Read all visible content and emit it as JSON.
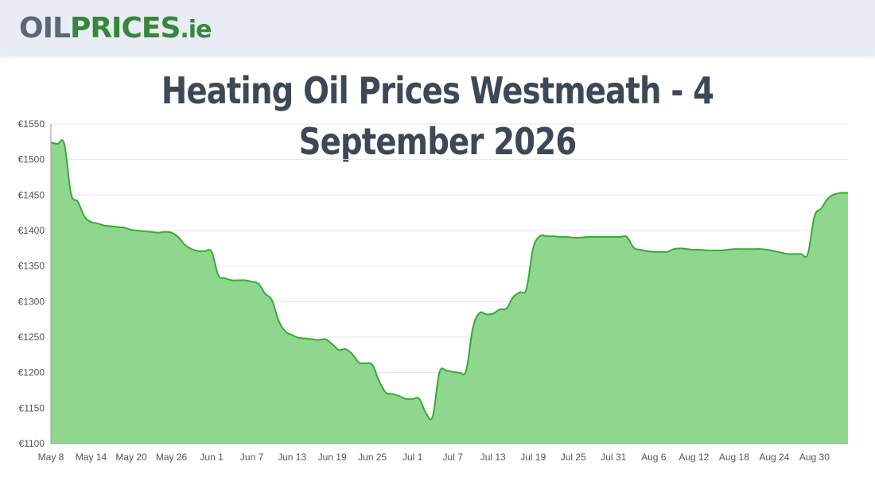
{
  "header": {
    "logo_part1": "OIL",
    "logo_part2": "PRICES",
    "logo_part3": ".ie"
  },
  "page": {
    "title": "Heating Oil Prices Westmeath - 4 September 2026"
  },
  "colors": {
    "header_bg": "#e9ecf4",
    "logo_gray": "#5d6677",
    "logo_green": "#36873a",
    "title": "#3e4756",
    "line": "#3aa935",
    "fill": "#8fd68f",
    "grid": "#e6e6e6"
  },
  "chart_data": {
    "type": "area",
    "title": "",
    "xlabel": "",
    "ylabel": "",
    "ylim": [
      1100,
      1550
    ],
    "y_ticks": [
      "€1100",
      "€1150",
      "€1200",
      "€1250",
      "€1300",
      "€1350",
      "€1400",
      "€1450",
      "€1500",
      "€1550"
    ],
    "y_tick_values": [
      1100,
      1150,
      1200,
      1250,
      1300,
      1350,
      1400,
      1450,
      1500,
      1550
    ],
    "x_tick_labels": [
      "May 8",
      "May 14",
      "May 20",
      "May 26",
      "Jun 1",
      "Jun 7",
      "Jun 13",
      "Jun 19",
      "Jun 25",
      "Jul 1",
      "Jul 7",
      "Jul 13",
      "Jul 19",
      "Jul 25",
      "Jul 31",
      "Aug 6",
      "Aug 12",
      "Aug 18",
      "Aug 24",
      "Aug 30"
    ],
    "grid": true,
    "legend": "none",
    "series": [
      {
        "x": [
          "May 8",
          "May 9",
          "May 10",
          "May 11",
          "May 12",
          "May 13",
          "May 14",
          "May 15",
          "May 16",
          "May 17",
          "May 18",
          "May 19",
          "May 20",
          "May 21",
          "May 22",
          "May 23",
          "May 24",
          "May 25",
          "May 26",
          "May 27",
          "May 28",
          "May 29",
          "May 30",
          "May 31",
          "Jun 1",
          "Jun 2",
          "Jun 3",
          "Jun 4",
          "Jun 5",
          "Jun 6",
          "Jun 7",
          "Jun 8",
          "Jun 9",
          "Jun 10",
          "Jun 11",
          "Jun 12",
          "Jun 13",
          "Jun 14",
          "Jun 15",
          "Jun 16",
          "Jun 17",
          "Jun 18",
          "Jun 19",
          "Jun 20",
          "Jun 21",
          "Jun 22",
          "Jun 23",
          "Jun 24",
          "Jun 25",
          "Jun 26",
          "Jun 27",
          "Jun 28",
          "Jun 29",
          "Jun 30",
          "Jul 1",
          "Jul 2",
          "Jul 3",
          "Jul 4",
          "Jul 5",
          "Jul 6",
          "Jul 7",
          "Jul 8",
          "Jul 9",
          "Jul 10",
          "Jul 11",
          "Jul 12",
          "Jul 13",
          "Jul 14",
          "Jul 15",
          "Jul 16",
          "Jul 17",
          "Jul 18",
          "Jul 19",
          "Jul 20",
          "Jul 21",
          "Jul 22",
          "Jul 23",
          "Jul 24",
          "Jul 25",
          "Jul 26",
          "Jul 27",
          "Jul 28",
          "Jul 29",
          "Jul 30",
          "Jul 31",
          "Aug 1",
          "Aug 2",
          "Aug 3",
          "Aug 4",
          "Aug 5",
          "Aug 6",
          "Aug 7",
          "Aug 8",
          "Aug 9",
          "Aug 10",
          "Aug 11",
          "Aug 12",
          "Aug 13",
          "Aug 14",
          "Aug 15",
          "Aug 16",
          "Aug 17",
          "Aug 18",
          "Aug 19",
          "Aug 20",
          "Aug 21",
          "Aug 22",
          "Aug 23",
          "Aug 24",
          "Aug 25",
          "Aug 26",
          "Aug 27",
          "Aug 28",
          "Aug 29",
          "Aug 30",
          "Aug 31",
          "Sep 1",
          "Sep 2",
          "Sep 3",
          "Sep 4"
        ],
        "values": [
          1524,
          1522,
          1522,
          1452,
          1441,
          1420,
          1412,
          1410,
          1407,
          1406,
          1405,
          1404,
          1401,
          1400,
          1399,
          1398,
          1397,
          1398,
          1397,
          1391,
          1380,
          1374,
          1371,
          1371,
          1370,
          1337,
          1333,
          1330,
          1330,
          1330,
          1328,
          1325,
          1311,
          1302,
          1273,
          1258,
          1253,
          1249,
          1248,
          1247,
          1246,
          1247,
          1240,
          1232,
          1233,
          1226,
          1214,
          1213,
          1211,
          1188,
          1172,
          1170,
          1167,
          1163,
          1163,
          1163,
          1143,
          1138,
          1200,
          1203,
          1201,
          1200,
          1203,
          1263,
          1284,
          1282,
          1283,
          1289,
          1290,
          1306,
          1313,
          1318,
          1375,
          1392,
          1392,
          1392,
          1391,
          1391,
          1390,
          1390,
          1391,
          1391,
          1391,
          1391,
          1391,
          1391,
          1391,
          1376,
          1373,
          1371,
          1370,
          1370,
          1370,
          1374,
          1375,
          1374,
          1373,
          1373,
          1372,
          1372,
          1372,
          1373,
          1374,
          1374,
          1374,
          1374,
          1374,
          1373,
          1371,
          1369,
          1367,
          1367,
          1367,
          1367,
          1420,
          1431,
          1445,
          1451,
          1453,
          1453
        ]
      }
    ]
  }
}
